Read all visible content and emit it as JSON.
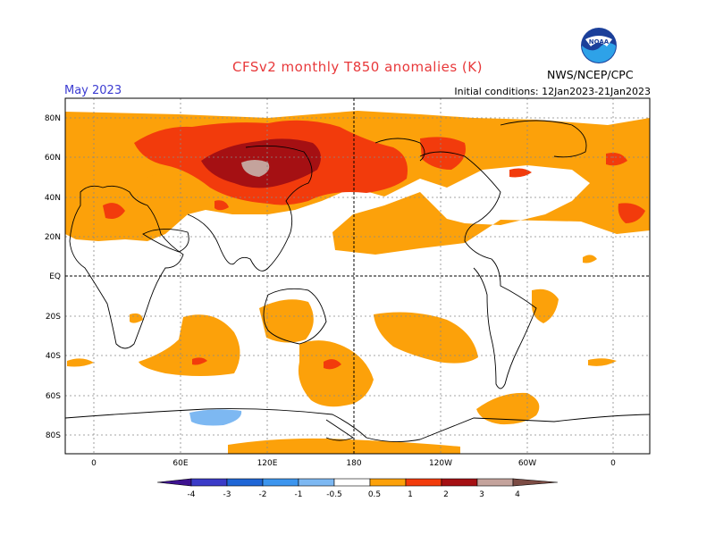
{
  "header": {
    "title": "CFSv2 monthly T850 anomalies (K)",
    "month": "May 2023",
    "initial_conditions": "Initial conditions: 12Jan2023-21Jan2023",
    "agency": "NWS/NCEP/CPC",
    "logo_text": "NOAA"
  },
  "map": {
    "lat_labels": [
      "80N",
      "60N",
      "40N",
      "20N",
      "EQ",
      "20S",
      "40S",
      "60S",
      "80S"
    ],
    "lon_labels": [
      "0",
      "60E",
      "120E",
      "180",
      "120W",
      "60W",
      "0"
    ]
  },
  "colorbar": {
    "labels": [
      "-4",
      "-3",
      "-2",
      "-1",
      "-0.5",
      "0.5",
      "1",
      "2",
      "3",
      "4"
    ],
    "colors": {
      "lt_-4": "#3d1290",
      "m4_m3": "#3b3bc8",
      "m3_m2": "#1f66d6",
      "m2_m1": "#3c95ee",
      "m1_m05": "#7db8f2",
      "p05_p1": "#fca10a",
      "p1_p2": "#f23b0c",
      "p2_p3": "#a51013",
      "p3_p4": "#c4a39c",
      "gt_4": "#7c4c44"
    }
  }
}
